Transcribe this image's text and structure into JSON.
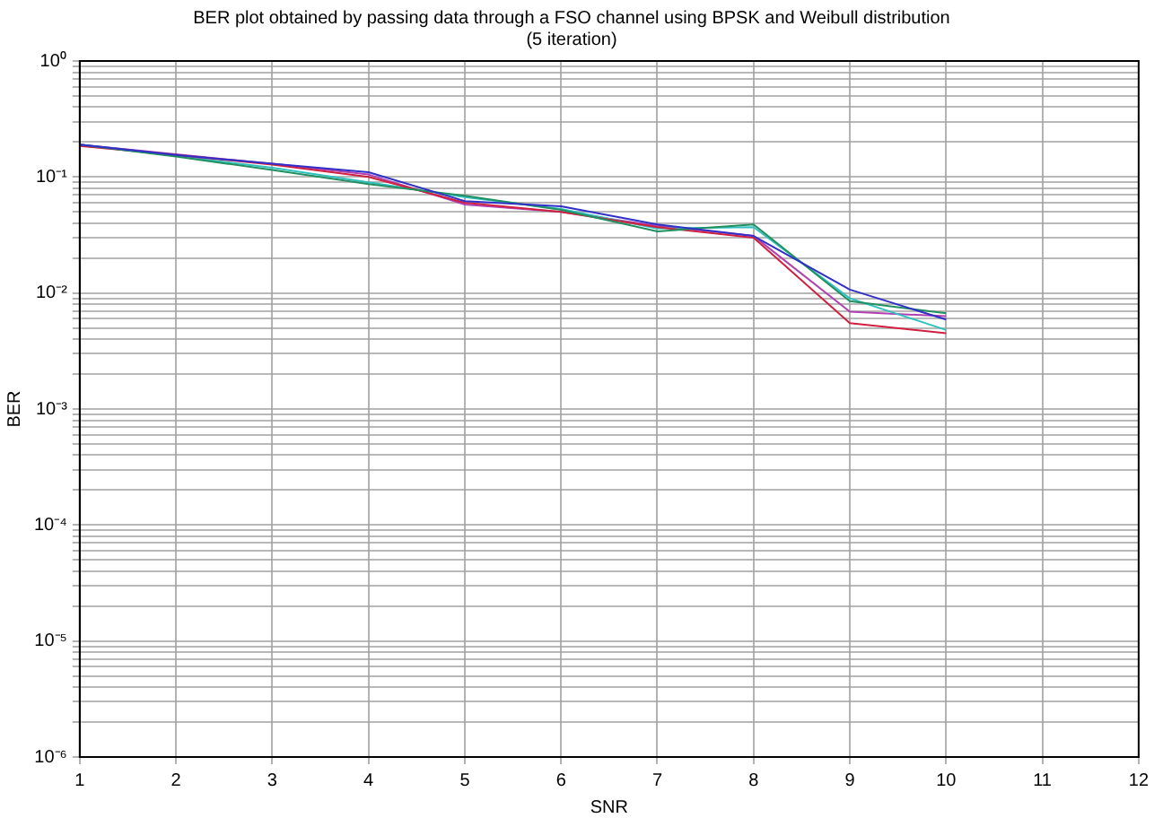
{
  "chart_data": {
    "type": "line",
    "title": "BER plot obtained by passing data through a FSO channel using BPSK and Weibull distribution",
    "subtitle": "(5 iteration)",
    "xlabel": "SNR",
    "ylabel": "BER",
    "x": [
      1,
      2,
      3,
      4,
      5,
      6,
      7,
      8,
      9,
      10
    ],
    "series": [
      {
        "color": "#3030c8",
        "values": [
          0.19,
          0.155,
          0.13,
          0.11,
          0.062,
          0.056,
          0.039,
          0.031,
          0.0107,
          0.0059
        ]
      },
      {
        "color": "#209060",
        "values": [
          0.19,
          0.15,
          0.115,
          0.087,
          0.069,
          0.052,
          0.034,
          0.039,
          0.0085,
          0.0067
        ]
      },
      {
        "color": "#d02040",
        "values": [
          0.185,
          0.155,
          0.128,
          0.1,
          0.06,
          0.05,
          0.037,
          0.03,
          0.0055,
          0.0045
        ]
      },
      {
        "color": "#30c0c0",
        "values": [
          0.19,
          0.152,
          0.12,
          0.09,
          0.067,
          0.053,
          0.036,
          0.037,
          0.009,
          0.0048
        ]
      },
      {
        "color": "#b040b0",
        "values": [
          0.19,
          0.157,
          0.13,
          0.105,
          0.058,
          0.05,
          0.038,
          0.031,
          0.0069,
          0.0063
        ]
      }
    ],
    "log": "y",
    "xlim": [
      1,
      12
    ],
    "xticks": [
      1,
      2,
      3,
      4,
      5,
      6,
      7,
      8,
      9,
      10,
      11,
      12
    ],
    "ylim": [
      1e-06,
      1
    ],
    "yticks": [
      {
        "value": 1e-06,
        "label": "10⁻⁶"
      },
      {
        "value": 2e-06,
        "label": null
      },
      {
        "value": 3e-06,
        "label": null
      },
      {
        "value": 4e-06,
        "label": null
      },
      {
        "value": 5e-06,
        "label": null
      },
      {
        "value": 6e-06,
        "label": null
      },
      {
        "value": 7e-06,
        "label": null
      },
      {
        "value": 8e-06,
        "label": null
      },
      {
        "value": 9e-06,
        "label": null
      },
      {
        "value": 1e-05,
        "label": "10⁻⁵"
      },
      {
        "value": 2e-05,
        "label": null
      },
      {
        "value": 3e-05,
        "label": null
      },
      {
        "value": 4e-05,
        "label": null
      },
      {
        "value": 5e-05,
        "label": null
      },
      {
        "value": 6e-05,
        "label": null
      },
      {
        "value": 7e-05,
        "label": null
      },
      {
        "value": 8e-05,
        "label": null
      },
      {
        "value": 9e-05,
        "label": null
      },
      {
        "value": 0.0001,
        "label": "10⁻⁴"
      },
      {
        "value": 0.0002,
        "label": null
      },
      {
        "value": 0.0003,
        "label": null
      },
      {
        "value": 0.0004,
        "label": null
      },
      {
        "value": 0.0005,
        "label": null
      },
      {
        "value": 0.0006,
        "label": null
      },
      {
        "value": 0.0007,
        "label": null
      },
      {
        "value": 0.0008,
        "label": null
      },
      {
        "value": 0.0009,
        "label": null
      },
      {
        "value": 0.001,
        "label": "10⁻³"
      },
      {
        "value": 0.002,
        "label": null
      },
      {
        "value": 0.003,
        "label": null
      },
      {
        "value": 0.004,
        "label": null
      },
      {
        "value": 0.005,
        "label": null
      },
      {
        "value": 0.006,
        "label": null
      },
      {
        "value": 0.007,
        "label": null
      },
      {
        "value": 0.008,
        "label": null
      },
      {
        "value": 0.009,
        "label": null
      },
      {
        "value": 0.01,
        "label": "10⁻²"
      },
      {
        "value": 0.02,
        "label": null
      },
      {
        "value": 0.03,
        "label": null
      },
      {
        "value": 0.04,
        "label": null
      },
      {
        "value": 0.05,
        "label": null
      },
      {
        "value": 0.06,
        "label": null
      },
      {
        "value": 0.07,
        "label": null
      },
      {
        "value": 0.08,
        "label": null
      },
      {
        "value": 0.09,
        "label": null
      },
      {
        "value": 0.1,
        "label": "10⁻¹"
      },
      {
        "value": 0.2,
        "label": null
      },
      {
        "value": 0.3,
        "label": null
      },
      {
        "value": 0.4,
        "label": null
      },
      {
        "value": 0.5,
        "label": null
      },
      {
        "value": 0.6,
        "label": null
      },
      {
        "value": 0.7,
        "label": null
      },
      {
        "value": 0.8,
        "label": null
      },
      {
        "value": 0.9,
        "label": null
      },
      {
        "value": 1,
        "label": "10⁰"
      }
    ],
    "grid": true,
    "marker": "none",
    "line_style": "solid"
  }
}
